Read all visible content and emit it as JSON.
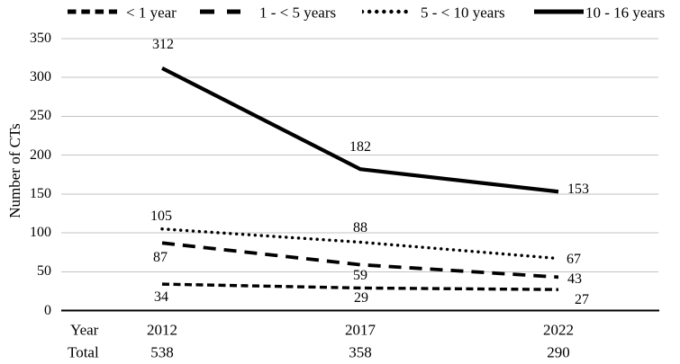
{
  "chart_data": {
    "type": "line",
    "title": "",
    "x": [
      "2012",
      "2017",
      "2022"
    ],
    "x_row_label": "Year",
    "total_row_label": "Total",
    "totals": [
      "538",
      "358",
      "290"
    ],
    "ylabel": "Number of CTs",
    "ylim": [
      0,
      350
    ],
    "yticks": [
      0,
      50,
      100,
      150,
      200,
      250,
      300,
      350
    ],
    "grid": true,
    "legend_position": "top",
    "series": [
      {
        "name": "< 1 year",
        "line_style": "small-dash",
        "values": [
          34,
          29,
          27
        ]
      },
      {
        "name": "1 - < 5 years",
        "line_style": "large-dash",
        "values": [
          87,
          59,
          43
        ]
      },
      {
        "name": "5 - < 10 years",
        "line_style": "dotted",
        "values": [
          105,
          88,
          67
        ]
      },
      {
        "name": "10 - 16 years",
        "line_style": "solid",
        "values": [
          312,
          182,
          153
        ]
      }
    ],
    "colors": {
      "line": "#000000",
      "grid": "#c3c3c3",
      "axis": "#000000",
      "text": "#000000"
    }
  }
}
